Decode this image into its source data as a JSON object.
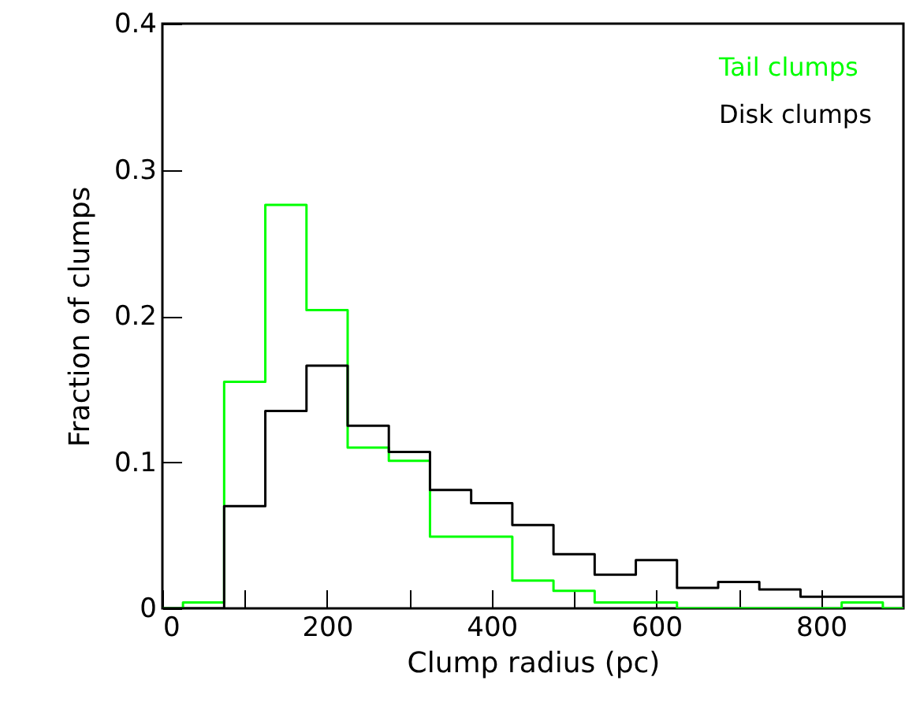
{
  "chart_data": {
    "type": "histogram",
    "xlabel": "Clump radius (pc)",
    "ylabel": "Fraction of clumps",
    "bins": [
      0,
      25,
      75,
      125,
      175,
      225,
      275,
      325,
      375,
      425,
      475,
      525,
      575,
      625,
      675,
      725,
      775,
      825,
      875,
      900
    ],
    "series": [
      {
        "name": "Tail clumps",
        "color": "#00ff00",
        "values": [
          0,
          0.004,
          0.155,
          0.276,
          0.204,
          0.11,
          0.101,
          0.049,
          0.049,
          0.019,
          0.012,
          0.004,
          0.004,
          0,
          0,
          0,
          0,
          0.004,
          0
        ]
      },
      {
        "name": "Disk clumps",
        "color": "#000000",
        "values": [
          0,
          0,
          0.07,
          0.135,
          0.166,
          0.125,
          0.107,
          0.081,
          0.072,
          0.057,
          0.037,
          0.023,
          0.033,
          0.014,
          0.018,
          0.013,
          0.008,
          0.008,
          0.008
        ]
      }
    ],
    "xlim": [
      0,
      900
    ],
    "xticks": [
      0,
      {
        "value": 100,
        "label": null
      },
      200,
      {
        "value": 300,
        "label": null
      },
      400,
      {
        "value": 500,
        "label": null
      },
      600,
      {
        "value": 700,
        "label": null
      },
      800
    ],
    "ylim": [
      0,
      0.4
    ],
    "yticks": [
      0,
      0.1,
      0.2,
      0.3,
      0.4
    ],
    "legend": "top right",
    "grid": false
  }
}
